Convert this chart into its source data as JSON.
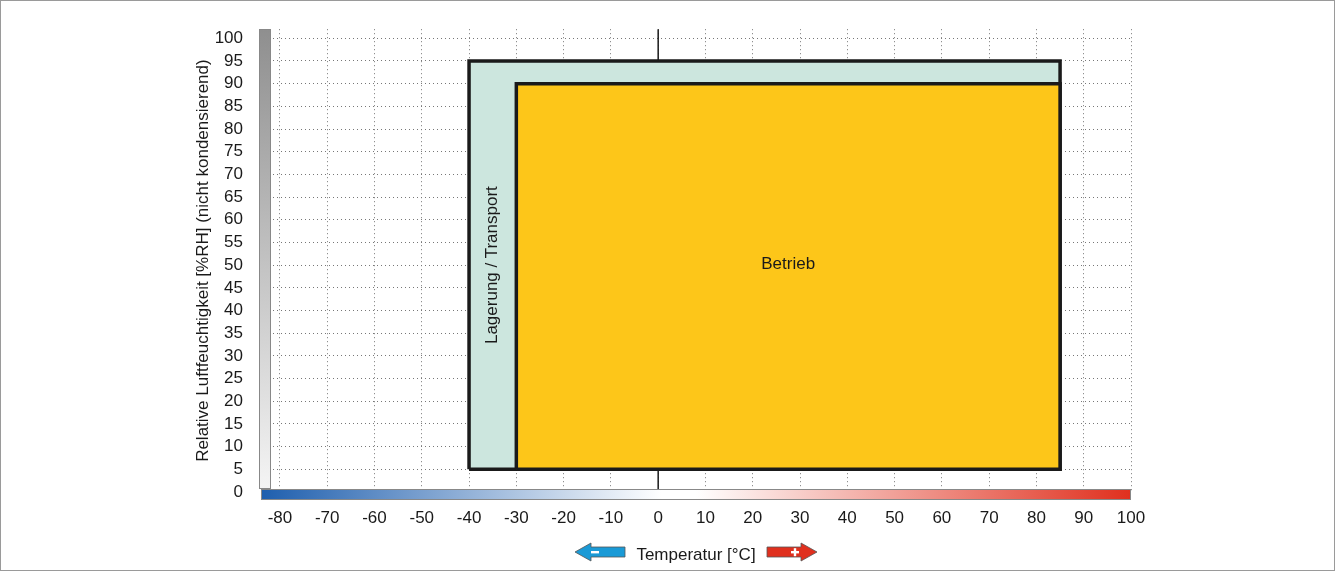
{
  "chart_data": {
    "type": "area",
    "xlabel": "Temperatur [°C]",
    "ylabel": "Relative Luftfeuchtigkeit [%RH] (nicht kondensierend)",
    "xlim": [
      -84,
      100
    ],
    "xticks": [
      -80,
      -70,
      -60,
      -50,
      -40,
      -30,
      -20,
      -10,
      0,
      10,
      20,
      30,
      40,
      50,
      60,
      70,
      80,
      90,
      100
    ],
    "ylim": [
      0,
      102
    ],
    "yticks": [
      0,
      5,
      10,
      15,
      20,
      25,
      30,
      35,
      40,
      45,
      50,
      55,
      60,
      65,
      70,
      75,
      80,
      85,
      90,
      95,
      100
    ],
    "grid": true,
    "legend": false,
    "ref_lines": [
      {
        "axis": "x",
        "value": 0,
        "color": "#1a1a1a"
      }
    ],
    "series": [
      {
        "name": "Lagerung / Transport",
        "color": "#cce6de",
        "x": [
          -40,
          -40,
          85,
          85
        ],
        "values": [
          5,
          95,
          95,
          5
        ]
      },
      {
        "name": "Betrieb",
        "color": "#fdc619",
        "x": [
          -30,
          -30,
          85,
          85
        ],
        "values": [
          5,
          90,
          90,
          5
        ]
      }
    ]
  }
}
